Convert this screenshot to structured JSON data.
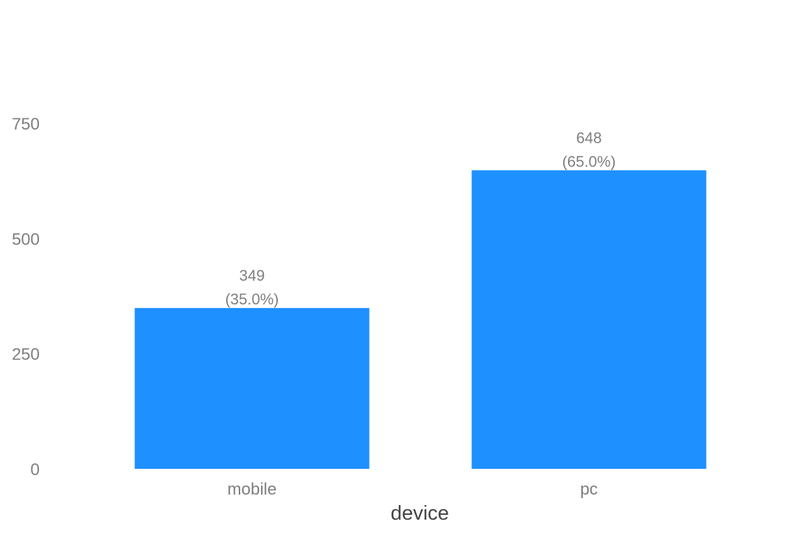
{
  "chart_data": {
    "type": "bar",
    "title": "",
    "xlabel": "device",
    "ylabel": "",
    "categories": [
      "mobile",
      "pc"
    ],
    "values": [
      349,
      648
    ],
    "labels": [
      {
        "count": "349",
        "percent": "(35.0%)"
      },
      {
        "count": "648",
        "percent": "(65.0%)"
      }
    ],
    "ylim": [
      0,
      910
    ],
    "yticks": [
      0,
      250,
      500,
      750
    ],
    "ytick_labels": [
      "0",
      "250",
      "500",
      "750"
    ],
    "grid": false,
    "legend": "none",
    "bar_color": "#1E90FF",
    "label_color": "#7F7F7F",
    "axis_title_color": "#444444"
  }
}
